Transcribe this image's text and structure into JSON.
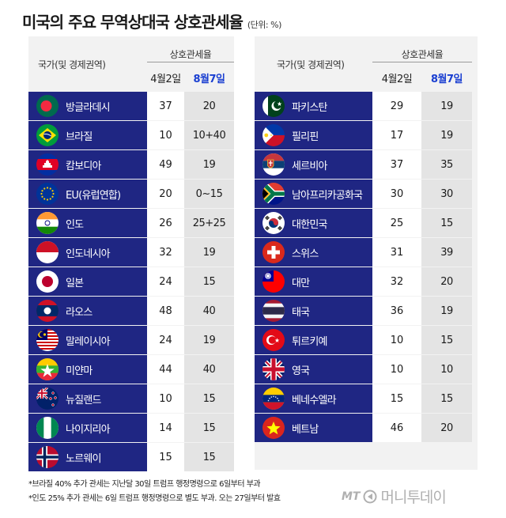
{
  "title": "미국의 주요 무역상대국 상호관세율",
  "unit": "(단위: %)",
  "header": {
    "country": "국가(및 경제권역)",
    "rate": "상호관세율",
    "april": "4월2일",
    "august": "8월7일"
  },
  "left_rows": [
    {
      "flag": "bangladesh-flag",
      "country": "방글라데시",
      "apr2": "37",
      "aug7": "20"
    },
    {
      "flag": "brazil-flag",
      "country": "브라질",
      "apr2": "10",
      "aug7": "10+40"
    },
    {
      "flag": "cambodia-flag",
      "country": "캄보디아",
      "apr2": "49",
      "aug7": "19"
    },
    {
      "flag": "eu-flag",
      "country": "EU(유럽연합)",
      "apr2": "20",
      "aug7": "0~15"
    },
    {
      "flag": "india-flag",
      "country": "인도",
      "apr2": "26",
      "aug7": "25+25"
    },
    {
      "flag": "indonesia-flag",
      "country": "인도네시아",
      "apr2": "32",
      "aug7": "19"
    },
    {
      "flag": "japan-flag",
      "country": "일본",
      "apr2": "24",
      "aug7": "15"
    },
    {
      "flag": "laos-flag",
      "country": "라오스",
      "apr2": "48",
      "aug7": "40"
    },
    {
      "flag": "malaysia-flag",
      "country": "말레이시아",
      "apr2": "24",
      "aug7": "19"
    },
    {
      "flag": "myanmar-flag",
      "country": "미얀마",
      "apr2": "44",
      "aug7": "40"
    },
    {
      "flag": "new-zealand-flag",
      "country": "뉴질랜드",
      "apr2": "10",
      "aug7": "15"
    },
    {
      "flag": "nigeria-flag",
      "country": "나이지리아",
      "apr2": "14",
      "aug7": "15"
    },
    {
      "flag": "norway-flag",
      "country": "노르웨이",
      "apr2": "15",
      "aug7": "15"
    }
  ],
  "right_rows": [
    {
      "flag": "pakistan-flag",
      "country": "파키스탄",
      "apr2": "29",
      "aug7": "19"
    },
    {
      "flag": "philippines-flag",
      "country": "필리핀",
      "apr2": "17",
      "aug7": "19"
    },
    {
      "flag": "serbia-flag",
      "country": "세르비아",
      "apr2": "37",
      "aug7": "35"
    },
    {
      "flag": "south-africa-flag",
      "country": "남아프리카공화국",
      "apr2": "30",
      "aug7": "30"
    },
    {
      "flag": "south-korea-flag",
      "country": "대한민국",
      "apr2": "25",
      "aug7": "15"
    },
    {
      "flag": "switzerland-flag",
      "country": "스위스",
      "apr2": "31",
      "aug7": "39"
    },
    {
      "flag": "taiwan-flag",
      "country": "대만",
      "apr2": "32",
      "aug7": "20"
    },
    {
      "flag": "thailand-flag",
      "country": "태국",
      "apr2": "36",
      "aug7": "19"
    },
    {
      "flag": "turkey-flag",
      "country": "튀르키예",
      "apr2": "10",
      "aug7": "15"
    },
    {
      "flag": "uk-flag",
      "country": "영국",
      "apr2": "10",
      "aug7": "10"
    },
    {
      "flag": "venezuela-flag",
      "country": "베네수엘라",
      "apr2": "15",
      "aug7": "15"
    },
    {
      "flag": "vietnam-flag",
      "country": "베트남",
      "apr2": "46",
      "aug7": "20"
    }
  ],
  "footnotes": [
    "*브라질 40% 추가 관세는 지난달 30일 트럼프 행정명령으로 6일부터 부과",
    "*인도 25% 추가 관세는 6일 트럼프 행정명령으로 별도 부과. 오는 27일부터 발효"
  ],
  "logo": {
    "mt": "MT",
    "brand": "머니투데이"
  },
  "colors": {
    "name_cell": "#1f2683",
    "highlight_header": "#1a3fd1",
    "panel_bg": "#f2f2f2"
  }
}
